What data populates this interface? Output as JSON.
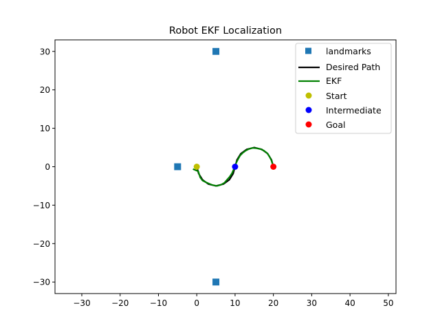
{
  "chart_data": {
    "type": "line",
    "title": "Robot EKF Localization",
    "xlabel": "",
    "ylabel": "",
    "xlim": [
      -37,
      52
    ],
    "ylim": [
      -33,
      33
    ],
    "xticks": [
      -30,
      -20,
      -10,
      0,
      10,
      20,
      30,
      40,
      50
    ],
    "yticks": [
      -30,
      -20,
      -10,
      0,
      10,
      20,
      30
    ],
    "grid": false,
    "legend_position": "top-right",
    "colors": {
      "landmarks": "#1f77b4",
      "desired_path": "#000000",
      "ekf": "#008000",
      "start": "#bfbf00",
      "intermediate": "#0000ff",
      "goal": "#ff0000"
    },
    "landmarks": {
      "name": "landmarks",
      "points": [
        [
          5,
          30
        ],
        [
          -5,
          0
        ],
        [
          5,
          -30
        ]
      ]
    },
    "desired_path": {
      "name": "Desired Path",
      "points": [
        [
          0,
          0
        ],
        [
          0.5,
          -1.8
        ],
        [
          1.5,
          -3.4
        ],
        [
          3,
          -4.5
        ],
        [
          5,
          -5
        ],
        [
          7,
          -4.5
        ],
        [
          8.5,
          -3.4
        ],
        [
          9.5,
          -1.8
        ],
        [
          10,
          0
        ],
        [
          10.5,
          1.8
        ],
        [
          11.5,
          3.4
        ],
        [
          13,
          4.5
        ],
        [
          15,
          5
        ],
        [
          17,
          4.5
        ],
        [
          18.5,
          3.4
        ],
        [
          19.5,
          1.8
        ],
        [
          20,
          0
        ]
      ]
    },
    "ekf": {
      "name": "EKF",
      "points": [
        [
          -1,
          -0.6
        ],
        [
          0.4,
          -1.2
        ],
        [
          0.9,
          -2.8
        ],
        [
          1.5,
          -3.6
        ],
        [
          2.3,
          -4.0
        ],
        [
          3.2,
          -4.4
        ],
        [
          4.2,
          -4.8
        ],
        [
          5.3,
          -5.0
        ],
        [
          6.3,
          -4.7
        ],
        [
          7.2,
          -4.2
        ],
        [
          7.9,
          -3.4
        ],
        [
          8.6,
          -2.6
        ],
        [
          9.2,
          -1.7
        ],
        [
          9.6,
          -0.8
        ],
        [
          10.0,
          0.2
        ],
        [
          10.3,
          1.0
        ],
        [
          10.8,
          2.0
        ],
        [
          11.3,
          2.9
        ],
        [
          12.0,
          3.6
        ],
        [
          12.8,
          4.2
        ],
        [
          13.6,
          4.6
        ],
        [
          14.6,
          4.9
        ],
        [
          15.6,
          4.8
        ],
        [
          16.6,
          4.6
        ],
        [
          17.5,
          4.2
        ],
        [
          18.4,
          3.5
        ],
        [
          19.0,
          2.6
        ],
        [
          19.5,
          1.6
        ],
        [
          19.8,
          0.6
        ],
        [
          20.0,
          0
        ]
      ]
    },
    "start": {
      "name": "Start",
      "points": [
        [
          0,
          0
        ]
      ]
    },
    "intermediate": {
      "name": "Intermediate",
      "points": [
        [
          10,
          0
        ]
      ]
    },
    "goal": {
      "name": "Goal",
      "points": [
        [
          20,
          0
        ]
      ]
    }
  }
}
